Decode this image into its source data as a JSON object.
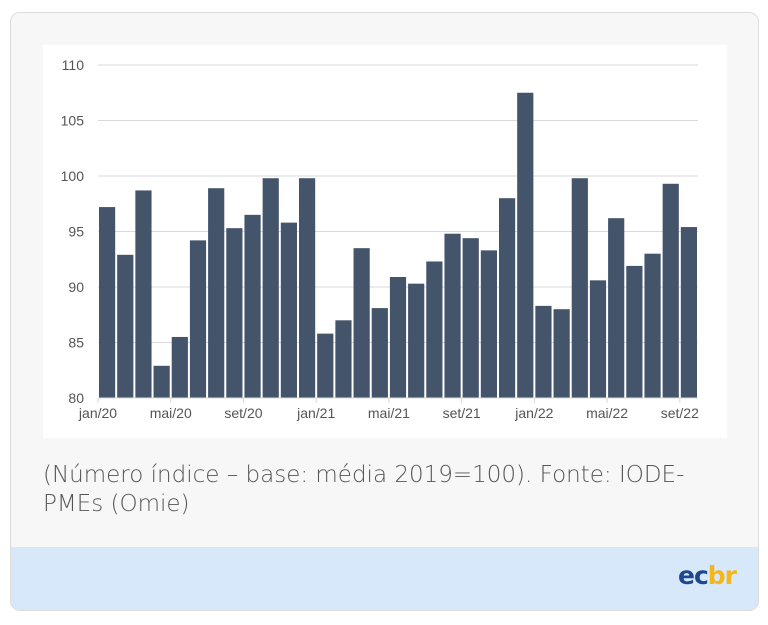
{
  "chart_data": {
    "type": "bar",
    "categories": [
      "jan/20",
      "fev/20",
      "mar/20",
      "abr/20",
      "mai/20",
      "jun/20",
      "jul/20",
      "ago/20",
      "set/20",
      "out/20",
      "nov/20",
      "dez/20",
      "jan/21",
      "fev/21",
      "mar/21",
      "abr/21",
      "mai/21",
      "jun/21",
      "jul/21",
      "ago/21",
      "set/21",
      "out/21",
      "nov/21",
      "dez/21",
      "jan/22",
      "fev/22",
      "mar/22",
      "abr/22",
      "mai/22",
      "jun/22",
      "jul/22",
      "ago/22",
      "set/22"
    ],
    "tick_labels": [
      "jan/20",
      "mai/20",
      "set/20",
      "jan/21",
      "mai/21",
      "set/21",
      "jan/22",
      "mai/22",
      "set/22"
    ],
    "values": [
      97.2,
      92.9,
      98.7,
      82.9,
      85.5,
      94.2,
      98.9,
      95.3,
      96.5,
      99.8,
      95.8,
      99.8,
      85.8,
      87.0,
      93.5,
      88.1,
      90.9,
      90.3,
      92.3,
      94.8,
      94.4,
      93.3,
      98.0,
      107.5,
      88.3,
      88.0,
      99.8,
      90.6,
      96.2,
      91.9,
      93.0,
      99.3,
      95.4
    ],
    "yticks": [
      "80",
      "85",
      "90",
      "95",
      "100",
      "105",
      "110"
    ],
    "ylim": [
      80,
      110
    ],
    "grid": true,
    "bar_color": "#44546a",
    "title": "",
    "xlabel": "",
    "ylabel": ""
  },
  "caption": "(Número índice – base: média 2019=100). Fonte: IODE-PMEs (Omie)",
  "logo": {
    "part1": "ec",
    "part2": "br",
    "color1": "#1f4690",
    "color2": "#f5b617"
  },
  "footer_color": "#d6e8fa"
}
